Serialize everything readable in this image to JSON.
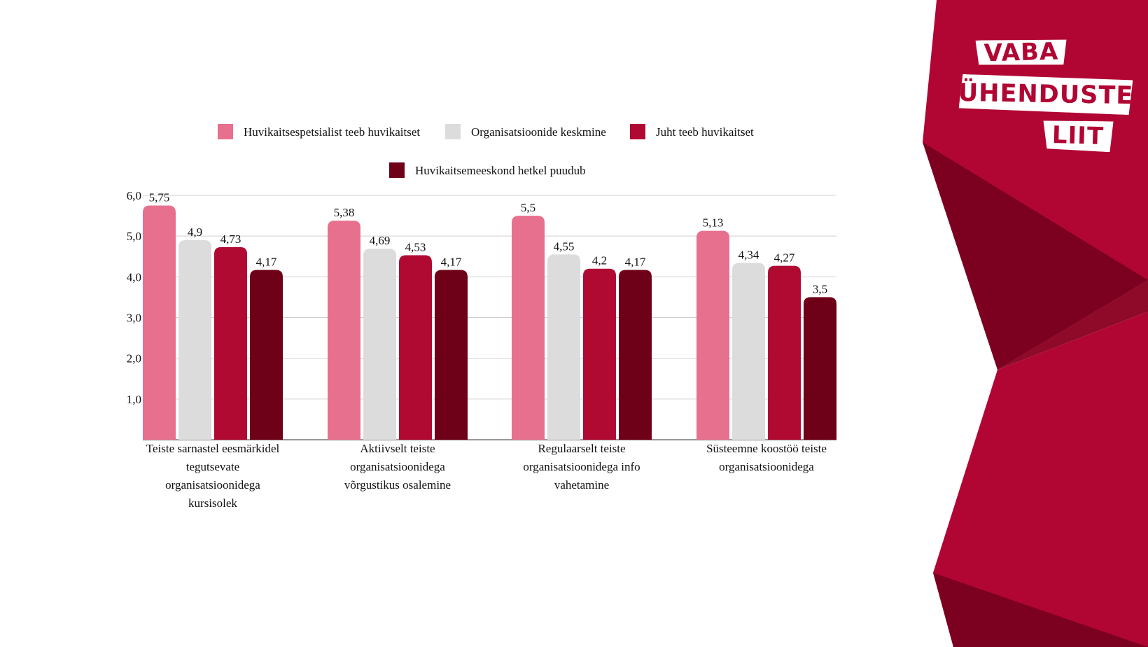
{
  "colors": {
    "series": [
      "#e8708f",
      "#dcdcdc",
      "#b00a33",
      "#6e0017"
    ],
    "grid": "#d0d0d0",
    "axis": "#777777",
    "brand_red": "#b10633",
    "brand_dark": "#7c0020"
  },
  "brand": {
    "line1": "VABA",
    "line2": "ÜHENDUSTE",
    "line3": "LIIT"
  },
  "chart_data": {
    "type": "bar",
    "title": "",
    "xlabel": "",
    "ylabel": "",
    "ylim": [
      0,
      6
    ],
    "yticks": [
      "1,0",
      "2,0",
      "3,0",
      "4,0",
      "5,0",
      "6,0"
    ],
    "ytick_values": [
      1,
      2,
      3,
      4,
      5,
      6
    ],
    "grid": true,
    "legend_position": "top",
    "categories": [
      [
        "Teiste sarnastel eesmärkidel",
        "tegutsevate",
        "organisatsioonidega",
        "kursisolek"
      ],
      [
        "Aktiivselt teiste",
        "organisatsioonidega",
        "võrgustikus osalemine"
      ],
      [
        "Regulaarselt teiste",
        "organisatsioonidega info",
        "vahetamine"
      ],
      [
        "Süsteemne koostöö teiste",
        "organisatsioonidega"
      ]
    ],
    "series": [
      {
        "name": "Huvikaitsespetsialist teeb huvikaitset",
        "values": [
          5.75,
          5.38,
          5.5,
          5.13
        ],
        "labels": [
          "5,75",
          "5,38",
          "5,5",
          "5,13"
        ]
      },
      {
        "name": "Organisatsioonide keskmine",
        "values": [
          4.9,
          4.69,
          4.55,
          4.34
        ],
        "labels": [
          "4,9",
          "4,69",
          "4,55",
          "4,34"
        ]
      },
      {
        "name": "Juht teeb huvikaitset",
        "values": [
          4.73,
          4.53,
          4.2,
          4.27
        ],
        "labels": [
          "4,73",
          "4,53",
          "4,2",
          "4,27"
        ]
      },
      {
        "name": "Huvikaitsemeeskond hetkel puudub",
        "values": [
          4.17,
          4.17,
          4.17,
          3.5
        ],
        "labels": [
          "4,17",
          "4,17",
          "4,17",
          "3,5"
        ]
      }
    ]
  }
}
